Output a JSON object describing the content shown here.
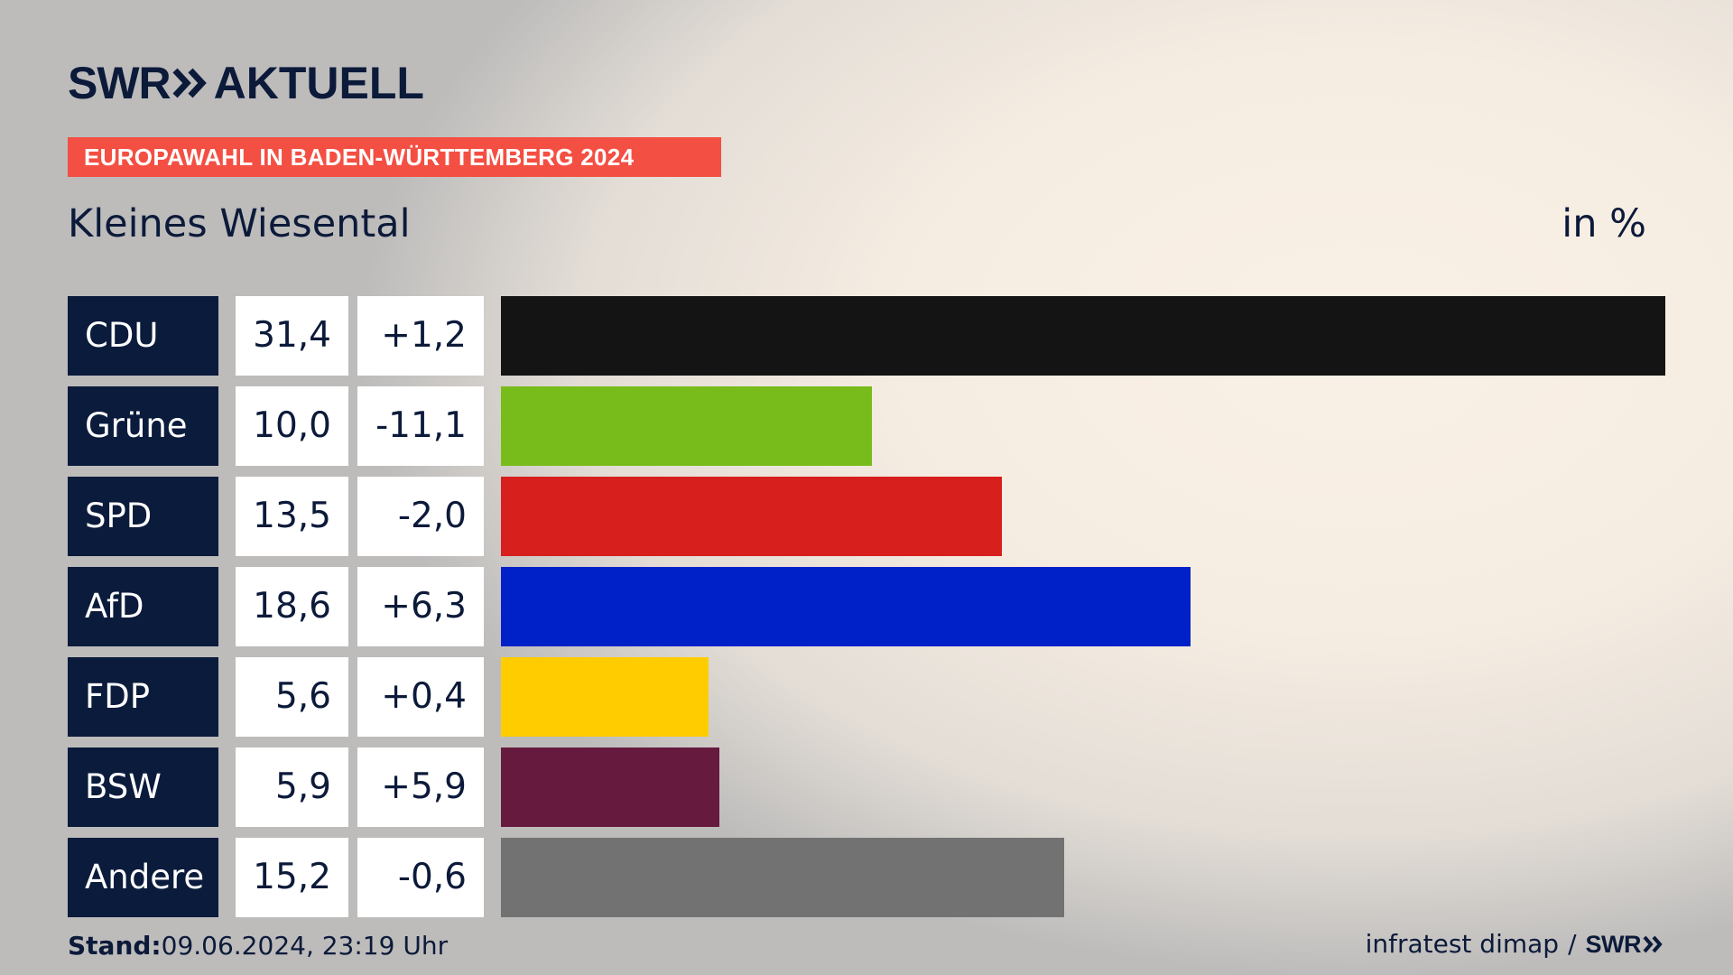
{
  "brand": {
    "swr": "SWR",
    "aktuell": "AKTUELL",
    "color": "#0c1a3a"
  },
  "banner": {
    "text": "EUROPAWAHL IN BADEN-WÜRTTEMBERG 2024",
    "color": "#f44f43"
  },
  "subtitle": "Kleines Wiesental",
  "unit_label": "in %",
  "chart_data": {
    "type": "bar",
    "orientation": "horizontal",
    "title": "EUROPAWAHL IN BADEN-WÜRTTEMBERG 2024",
    "subtitle": "Kleines Wiesental",
    "unit": "in %",
    "categories": [
      "CDU",
      "Grüne",
      "SPD",
      "AfD",
      "FDP",
      "BSW",
      "Andere"
    ],
    "values": [
      31.4,
      10.0,
      13.5,
      18.6,
      5.6,
      5.9,
      15.2
    ],
    "value_labels": [
      "31,4",
      "10,0",
      "13,5",
      "18,6",
      "5,6",
      "5,9",
      "15,2"
    ],
    "change_labels": [
      "+1,2",
      "-11,1",
      "-2,0",
      "+6,3",
      "+0,4",
      "+5,9",
      "-0,6"
    ],
    "changes": [
      1.2,
      -11.1,
      -2.0,
      6.3,
      0.4,
      5.9,
      -0.6
    ],
    "colors": [
      "#141414",
      "#78bc1b",
      "#d71f1d",
      "#0021c8",
      "#ffcc00",
      "#661a3e",
      "#727272"
    ],
    "xlim": [
      0,
      31.4
    ]
  },
  "footer": {
    "stand_label": "Stand:",
    "stand_value": "09.06.2024, 23:19 Uhr",
    "source": "infratest dimap",
    "separator": "/",
    "source_logo": "SWR"
  }
}
